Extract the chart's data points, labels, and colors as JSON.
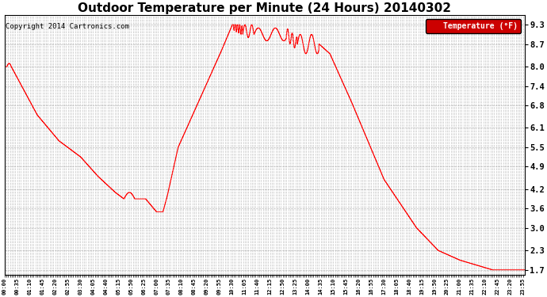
{
  "title": "Outdoor Temperature per Minute (24 Hours) 20140302",
  "copyright": "Copyright 2014 Cartronics.com",
  "legend_label": "Temperature (°F)",
  "yticks": [
    1.7,
    2.3,
    3.0,
    3.6,
    4.2,
    4.9,
    5.5,
    6.1,
    6.8,
    7.4,
    8.0,
    8.7,
    9.3
  ],
  "ylim": [
    1.55,
    9.6
  ],
  "xlim": [
    0,
    1439
  ],
  "line_color": "#ff0000",
  "background_color": "#ffffff",
  "grid_color": "#999999",
  "legend_bg": "#cc0000",
  "legend_text_color": "#ffffff",
  "title_fontsize": 11,
  "copyright_fontsize": 6.5,
  "xtick_interval_minutes": 35,
  "total_minutes": 1440
}
